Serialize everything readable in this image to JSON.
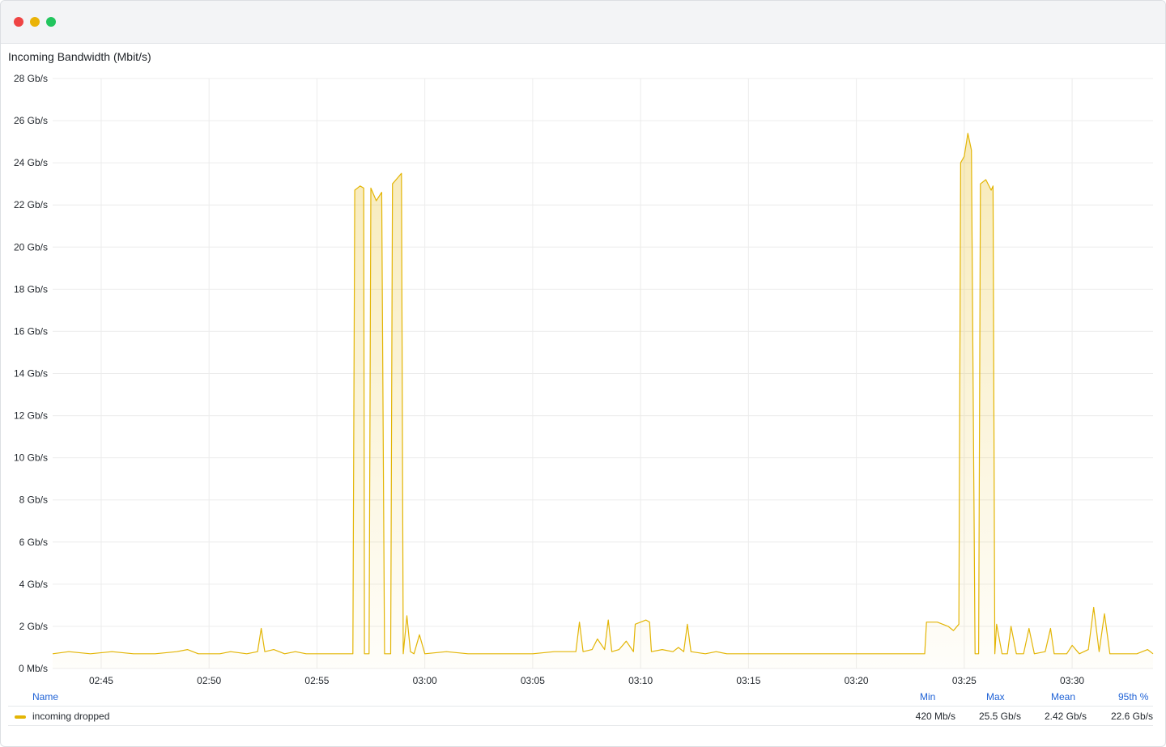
{
  "window": {
    "controls": [
      "close",
      "minimize",
      "zoom"
    ]
  },
  "panel": {
    "title": "Incoming Bandwidth (Mbit/s)"
  },
  "colors": {
    "series": "#e3b505",
    "grid": "#ececec"
  },
  "chart_data": {
    "type": "area",
    "title": "Incoming Bandwidth (Mbit/s)",
    "ylim": [
      0,
      28
    ],
    "y_unit": "Gb/s",
    "y_ticks": [
      "0 Mb/s",
      "2 Gb/s",
      "4 Gb/s",
      "6 Gb/s",
      "8 Gb/s",
      "10 Gb/s",
      "12 Gb/s",
      "14 Gb/s",
      "16 Gb/s",
      "18 Gb/s",
      "20 Gb/s",
      "22 Gb/s",
      "24 Gb/s",
      "26 Gb/s",
      "28 Gb/s"
    ],
    "x_ticks": [
      "02:45",
      "02:50",
      "02:55",
      "03:00",
      "03:05",
      "03:10",
      "03:15",
      "03:20",
      "03:25",
      "03:30"
    ],
    "xlim": [
      "02:42:45",
      "03:33:45"
    ],
    "grid": true,
    "series": [
      {
        "name": "incoming dropped",
        "points": [
          [
            "02:42:45",
            0.7
          ],
          [
            "02:43:30",
            0.8
          ],
          [
            "02:44:30",
            0.7
          ],
          [
            "02:45:30",
            0.8
          ],
          [
            "02:46:30",
            0.7
          ],
          [
            "02:47:30",
            0.7
          ],
          [
            "02:48:30",
            0.8
          ],
          [
            "02:49:00",
            0.9
          ],
          [
            "02:49:30",
            0.7
          ],
          [
            "02:50:30",
            0.7
          ],
          [
            "02:51:00",
            0.8
          ],
          [
            "02:51:45",
            0.7
          ],
          [
            "02:52:15",
            0.8
          ],
          [
            "02:52:25",
            1.9
          ],
          [
            "02:52:35",
            0.8
          ],
          [
            "02:53:00",
            0.9
          ],
          [
            "02:53:30",
            0.7
          ],
          [
            "02:54:00",
            0.8
          ],
          [
            "02:54:30",
            0.7
          ],
          [
            "02:55:30",
            0.7
          ],
          [
            "02:56:30",
            0.7
          ],
          [
            "02:56:40",
            0.7
          ],
          [
            "02:56:45",
            22.7
          ],
          [
            "02:57:00",
            22.9
          ],
          [
            "02:57:10",
            22.8
          ],
          [
            "02:57:12",
            0.7
          ],
          [
            "02:57:25",
            0.7
          ],
          [
            "02:57:30",
            22.8
          ],
          [
            "02:57:45",
            22.2
          ],
          [
            "02:58:00",
            22.6
          ],
          [
            "02:58:08",
            0.7
          ],
          [
            "02:58:25",
            0.7
          ],
          [
            "02:58:30",
            23.0
          ],
          [
            "02:58:45",
            23.3
          ],
          [
            "02:58:55",
            23.5
          ],
          [
            "02:59:00",
            0.7
          ],
          [
            "02:59:10",
            2.5
          ],
          [
            "02:59:20",
            0.8
          ],
          [
            "02:59:30",
            0.7
          ],
          [
            "02:59:45",
            1.6
          ],
          [
            "03:00:00",
            0.7
          ],
          [
            "03:01:00",
            0.8
          ],
          [
            "03:02:00",
            0.7
          ],
          [
            "03:03:00",
            0.7
          ],
          [
            "03:04:00",
            0.7
          ],
          [
            "03:05:00",
            0.7
          ],
          [
            "03:06:00",
            0.8
          ],
          [
            "03:07:00",
            0.8
          ],
          [
            "03:07:10",
            2.2
          ],
          [
            "03:07:20",
            0.8
          ],
          [
            "03:07:45",
            0.9
          ],
          [
            "03:08:00",
            1.4
          ],
          [
            "03:08:20",
            0.9
          ],
          [
            "03:08:30",
            2.3
          ],
          [
            "03:08:40",
            0.8
          ],
          [
            "03:09:00",
            0.9
          ],
          [
            "03:09:20",
            1.3
          ],
          [
            "03:09:40",
            0.8
          ],
          [
            "03:09:45",
            2.1
          ],
          [
            "03:10:00",
            2.2
          ],
          [
            "03:10:15",
            2.3
          ],
          [
            "03:10:25",
            2.2
          ],
          [
            "03:10:30",
            0.8
          ],
          [
            "03:11:00",
            0.9
          ],
          [
            "03:11:30",
            0.8
          ],
          [
            "03:11:45",
            1.0
          ],
          [
            "03:12:00",
            0.8
          ],
          [
            "03:12:10",
            2.1
          ],
          [
            "03:12:20",
            0.8
          ],
          [
            "03:13:00",
            0.7
          ],
          [
            "03:13:30",
            0.8
          ],
          [
            "03:14:00",
            0.7
          ],
          [
            "03:15:00",
            0.7
          ],
          [
            "03:16:00",
            0.7
          ],
          [
            "03:17:00",
            0.7
          ],
          [
            "03:18:00",
            0.7
          ],
          [
            "03:19:00",
            0.7
          ],
          [
            "03:20:00",
            0.7
          ],
          [
            "03:21:00",
            0.7
          ],
          [
            "03:22:00",
            0.7
          ],
          [
            "03:23:00",
            0.7
          ],
          [
            "03:23:10",
            0.7
          ],
          [
            "03:23:15",
            2.2
          ],
          [
            "03:23:45",
            2.2
          ],
          [
            "03:24:15",
            2.0
          ],
          [
            "03:24:30",
            1.8
          ],
          [
            "03:24:45",
            2.1
          ],
          [
            "03:24:50",
            24.0
          ],
          [
            "03:25:00",
            24.3
          ],
          [
            "03:25:10",
            25.4
          ],
          [
            "03:25:20",
            24.6
          ],
          [
            "03:25:30",
            0.7
          ],
          [
            "03:25:40",
            0.7
          ],
          [
            "03:25:45",
            23.0
          ],
          [
            "03:26:00",
            23.2
          ],
          [
            "03:26:15",
            22.7
          ],
          [
            "03:26:20",
            22.9
          ],
          [
            "03:26:25",
            0.7
          ],
          [
            "03:26:30",
            2.1
          ],
          [
            "03:26:45",
            0.7
          ],
          [
            "03:27:00",
            0.7
          ],
          [
            "03:27:10",
            2.0
          ],
          [
            "03:27:25",
            0.7
          ],
          [
            "03:27:45",
            0.7
          ],
          [
            "03:28:00",
            1.9
          ],
          [
            "03:28:15",
            0.7
          ],
          [
            "03:28:45",
            0.8
          ],
          [
            "03:29:00",
            1.9
          ],
          [
            "03:29:10",
            0.7
          ],
          [
            "03:29:45",
            0.7
          ],
          [
            "03:30:00",
            1.1
          ],
          [
            "03:30:20",
            0.7
          ],
          [
            "03:30:45",
            0.9
          ],
          [
            "03:31:00",
            2.9
          ],
          [
            "03:31:15",
            0.8
          ],
          [
            "03:31:30",
            2.6
          ],
          [
            "03:31:45",
            0.7
          ],
          [
            "03:32:30",
            0.7
          ],
          [
            "03:33:00",
            0.7
          ],
          [
            "03:33:30",
            0.9
          ],
          [
            "03:33:45",
            0.7
          ]
        ]
      }
    ]
  },
  "legend": {
    "headers": {
      "name": "Name",
      "min": "Min",
      "max": "Max",
      "mean": "Mean",
      "p95": "95th %"
    },
    "rows": [
      {
        "name": "incoming dropped",
        "min": "420 Mb/s",
        "max": "25.5 Gb/s",
        "mean": "2.42 Gb/s",
        "p95": "22.6 Gb/s"
      }
    ]
  }
}
